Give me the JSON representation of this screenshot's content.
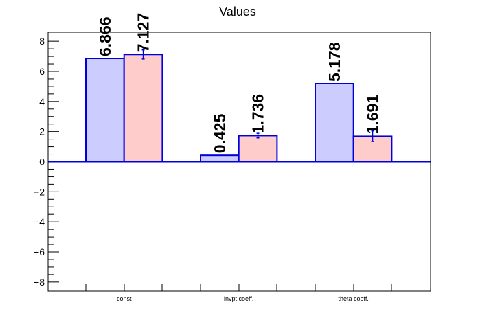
{
  "chart_data": {
    "type": "bar",
    "title": "Values",
    "categories": [
      "const",
      "invpt coeff.",
      "theta coeff."
    ],
    "series": [
      {
        "color": "#ccccff",
        "values": [
          6.866,
          0.425,
          5.178
        ],
        "labels": [
          "6.866",
          "0.425",
          "5.178"
        ],
        "errors": [
          0,
          0,
          0
        ]
      },
      {
        "color": "#ffcccc",
        "values": [
          7.127,
          1.736,
          1.691
        ],
        "labels": [
          "7.127",
          "1.736",
          "1.691"
        ],
        "errors": [
          0.3,
          0.15,
          0.35
        ]
      }
    ],
    "ylim": [
      -8.6,
      8.6
    ],
    "yticks": [
      -8,
      -6,
      -4,
      -2,
      0,
      2,
      4,
      6,
      8
    ],
    "ytick_labels": [
      "−8",
      "−6",
      "−4",
      "−2",
      "0",
      "2",
      "4",
      "6",
      "8"
    ],
    "bar_edge_color": "#0000dd",
    "grid": false,
    "legend": "none"
  }
}
